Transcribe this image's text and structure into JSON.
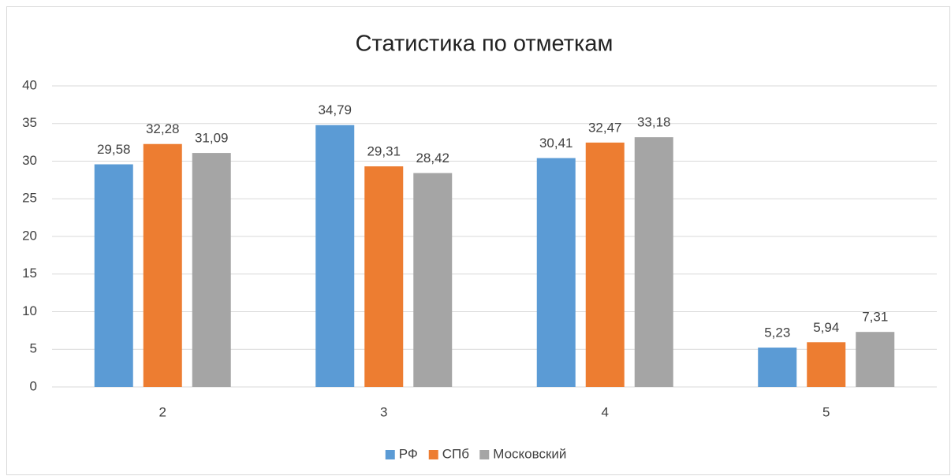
{
  "chart_data": {
    "type": "bar",
    "title": "Статистика по отметкам",
    "categories": [
      "2",
      "3",
      "4",
      "5"
    ],
    "series": [
      {
        "name": "РФ",
        "color": "#5b9bd5",
        "values": [
          29.58,
          34.79,
          30.41,
          5.23
        ],
        "value_labels": [
          "29,58",
          "34,79",
          "30,41",
          "5,23"
        ]
      },
      {
        "name": "СПб",
        "color": "#ed7d31",
        "values": [
          32.28,
          29.31,
          32.47,
          5.94
        ],
        "value_labels": [
          "32,28",
          "29,31",
          "32,47",
          "5,94"
        ]
      },
      {
        "name": "Московский",
        "color": "#a5a5a5",
        "values": [
          31.09,
          28.42,
          33.18,
          7.31
        ],
        "value_labels": [
          "31,09",
          "28,42",
          "33,18",
          "7,31"
        ]
      }
    ],
    "ylim": [
      0,
      40
    ],
    "yticks": [
      0,
      5,
      10,
      15,
      20,
      25,
      30,
      35,
      40
    ],
    "grid": true,
    "legend": "bottom"
  }
}
